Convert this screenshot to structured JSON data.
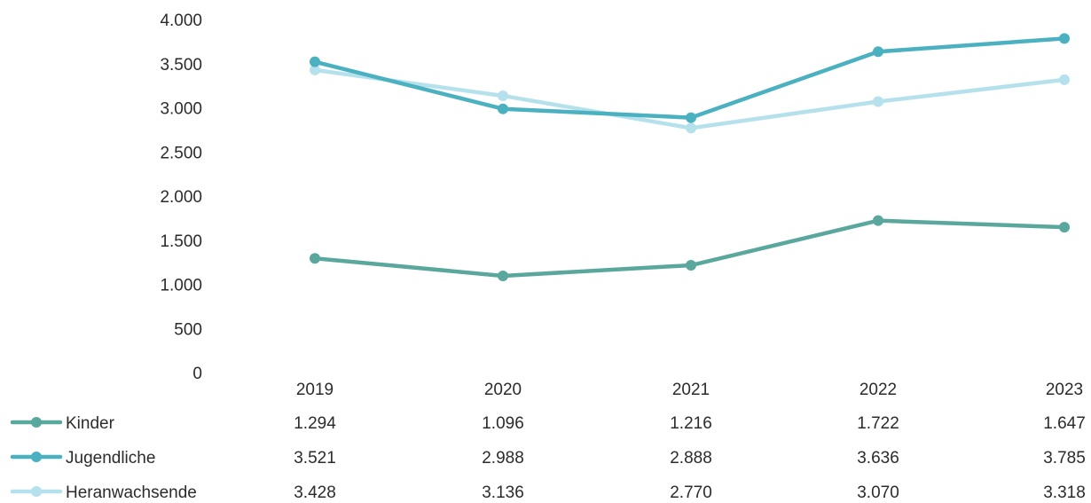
{
  "chart_data": {
    "type": "line",
    "categories": [
      "2019",
      "2020",
      "2021",
      "2022",
      "2023"
    ],
    "ylim": [
      0,
      4000
    ],
    "yticks": [
      0,
      500,
      1000,
      1500,
      2000,
      2500,
      3000,
      3500,
      4000
    ],
    "ytick_labels": [
      "0",
      "500",
      "1.000",
      "1.500",
      "2.000",
      "2.500",
      "3.000",
      "3.500",
      "4.000"
    ],
    "grid": false,
    "legend": "data-table-bottom",
    "series": [
      {
        "name": "Kinder",
        "color": "#5aa79e",
        "values": [
          1294,
          1096,
          1216,
          1722,
          1647
        ],
        "labels": [
          "1.294",
          "1.096",
          "1.216",
          "1.722",
          "1.647"
        ]
      },
      {
        "name": "Jugendliche",
        "color": "#4bb0c0",
        "values": [
          3521,
          2988,
          2888,
          3636,
          3785
        ],
        "labels": [
          "3.521",
          "2.988",
          "2.888",
          "3.636",
          "3.785"
        ]
      },
      {
        "name": "Heranwachsende",
        "color": "#b5e1ec",
        "values": [
          3428,
          3136,
          2770,
          3070,
          3318
        ],
        "labels": [
          "3.428",
          "3.136",
          "2.770",
          "3.070",
          "3.318"
        ]
      }
    ]
  }
}
